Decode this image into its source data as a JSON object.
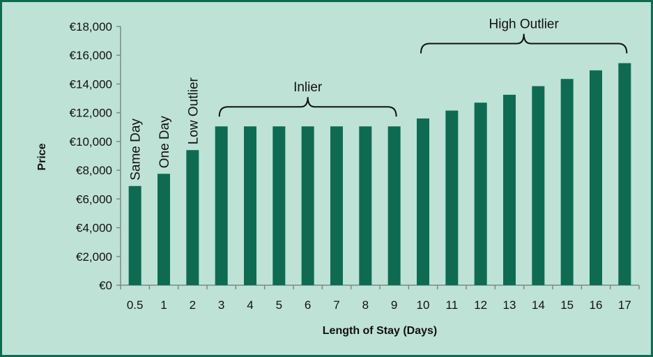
{
  "chart_data": {
    "type": "bar",
    "xlabel": "Length of Stay (Days)",
    "ylabel": "Price",
    "ylim": [
      0,
      18000
    ],
    "yticks": [
      0,
      2000,
      4000,
      6000,
      8000,
      10000,
      12000,
      14000,
      16000,
      18000
    ],
    "ytick_labels": [
      "€0",
      "€2,000",
      "€4,000",
      "€6,000",
      "€8,000",
      "€10,000",
      "€12,000",
      "€14,000",
      "€16,000",
      "€18,000"
    ],
    "categories": [
      "0.5",
      "1",
      "2",
      "3",
      "4",
      "5",
      "6",
      "7",
      "8",
      "9",
      "10",
      "11",
      "12",
      "13",
      "14",
      "15",
      "16",
      "17"
    ],
    "values": [
      6900,
      7750,
      9400,
      11050,
      11050,
      11050,
      11050,
      11050,
      11050,
      11050,
      11600,
      12150,
      12700,
      13250,
      13850,
      14350,
      14950,
      15450
    ],
    "bar_color": "#0e6b52",
    "background_color": "#bfe2d6",
    "grid": false,
    "legend": false,
    "annotations": {
      "vertical_labels": [
        {
          "text": "Same Day",
          "category": "0.5"
        },
        {
          "text": "One Day",
          "category": "1"
        },
        {
          "text": "Low Outlier",
          "category": "2"
        }
      ],
      "braces": [
        {
          "text": "Inlier",
          "from": "3",
          "to": "9"
        },
        {
          "text": "High Outlier",
          "from": "10",
          "to": "17"
        }
      ]
    }
  }
}
